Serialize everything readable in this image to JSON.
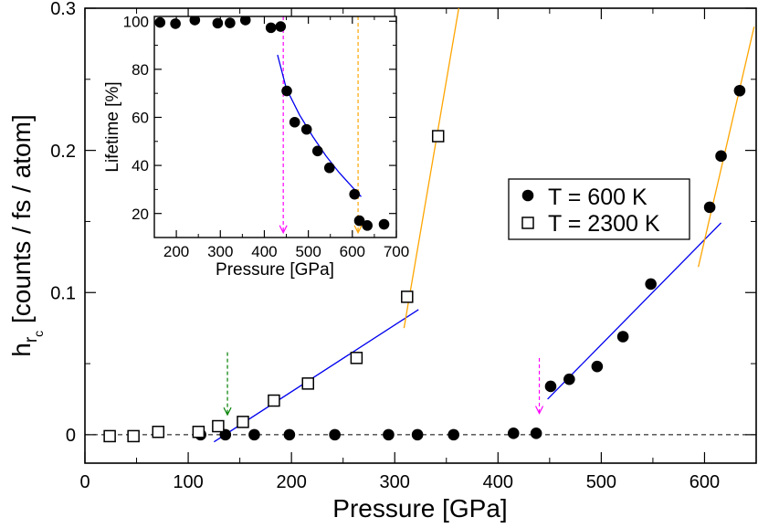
{
  "chart_data": [
    {
      "type": "scatter",
      "title": "",
      "xlabel": "Pressure [GPa]",
      "ylabel_main": "h",
      "ylabel_sub1": "r",
      "ylabel_sub2": "c",
      "ylabel_rest": " [counts / fs / atom]",
      "xlim": [
        0,
        650
      ],
      "ylim": [
        -0.02,
        0.3
      ],
      "xticks": [
        0,
        100,
        200,
        300,
        400,
        500,
        600
      ],
      "xtick_labels": [
        "0",
        "100",
        "200",
        "300",
        "400",
        "500",
        "600"
      ],
      "yticks": [
        0,
        0.1,
        0.2,
        0.3
      ],
      "ytick_labels": [
        "0",
        "0.1",
        "0.2",
        "0.3"
      ],
      "legend_position": "right-center",
      "series": [
        {
          "name": "T = 600 K",
          "marker": "filled-circle",
          "x": [
            112,
            136,
            164,
            198,
            242,
            294,
            322,
            357,
            415,
            437,
            451,
            469,
            496,
            521,
            548,
            605,
            616,
            634
          ],
          "y": [
            0.0,
            0.0,
            0.0,
            0.0,
            0.0,
            0.0,
            0.0,
            0.0,
            0.001,
            0.001,
            0.034,
            0.039,
            0.048,
            0.069,
            0.106,
            0.16,
            0.196,
            0.242
          ]
        },
        {
          "name": "T = 2300 K",
          "marker": "open-square",
          "x": [
            24,
            47,
            71,
            110,
            129,
            153,
            183,
            216,
            263,
            312,
            342
          ],
          "y": [
            -0.001,
            -0.001,
            0.002,
            0.002,
            0.006,
            0.009,
            0.024,
            0.036,
            0.054,
            0.097,
            0.21
          ]
        }
      ],
      "fit_lines": [
        {
          "name": "fit-2300K-low",
          "color": "#0000ee",
          "x": [
            125,
            323
          ],
          "y": [
            -0.005,
            0.088
          ]
        },
        {
          "name": "fit-2300K-high",
          "color": "#ffa500",
          "x": [
            309,
            362
          ],
          "y": [
            0.075,
            0.3
          ]
        },
        {
          "name": "fit-600K-low",
          "color": "#0000ee",
          "x": [
            448,
            616
          ],
          "y": [
            0.025,
            0.149
          ]
        },
        {
          "name": "fit-600K-high",
          "color": "#ffa500",
          "x": [
            594,
            648
          ],
          "y": [
            0.118,
            0.287
          ]
        }
      ],
      "zero_line": {
        "y": 0,
        "style": "dashed"
      },
      "arrows": [
        {
          "name": "green-arrow",
          "color": "#008000",
          "x": 138,
          "y_from": 0.058,
          "y_to": 0.014
        },
        {
          "name": "magenta-arrow",
          "color": "#ff00ff",
          "x": 440,
          "y_from": 0.054,
          "y_to": 0.015
        }
      ]
    },
    {
      "type": "scatter",
      "title": "",
      "xlabel": "Pressure [GPa]",
      "ylabel": "Lifetime [%]",
      "xlim": [
        150,
        700
      ],
      "ylim": [
        10,
        102
      ],
      "xticks": [
        200,
        300,
        400,
        500,
        600,
        700
      ],
      "xtick_labels": [
        "200",
        "300",
        "400",
        "500",
        "600",
        "700"
      ],
      "yticks": [
        20,
        40,
        60,
        80,
        100
      ],
      "ytick_labels": [
        "20",
        "40",
        "60",
        "80",
        "100"
      ],
      "series": [
        {
          "name": "Lifetime",
          "marker": "filled-circle",
          "x": [
            163,
            198,
            242,
            294,
            322,
            357,
            415,
            437,
            451,
            469,
            496,
            521,
            548,
            605,
            616,
            634,
            672
          ],
          "y": [
            99.5,
            99.0,
            100.5,
            99.2,
            99.3,
            100.5,
            97.3,
            97.8,
            71,
            58,
            55,
            46,
            39,
            28,
            17,
            15,
            15.5
          ]
        }
      ],
      "fit_curve": {
        "name": "fit-lifetime",
        "color": "#0000ee",
        "x": [
          430,
          450,
          480,
          510,
          540,
          570,
          600,
          620
        ],
        "y": [
          86,
          72,
          61,
          52,
          44,
          37,
          31,
          27
        ]
      },
      "arrows": [
        {
          "name": "magenta-arrow",
          "color": "#ff00ff",
          "x": 443,
          "y_from": 102,
          "y_to": 12
        },
        {
          "name": "orange-arrow",
          "color": "#ffa500",
          "x": 613,
          "y_from": 102,
          "y_to": 12
        }
      ]
    }
  ],
  "legend": {
    "entries": [
      {
        "label": "T = 600 K",
        "marker": "filled-circle"
      },
      {
        "label": "T = 2300 K",
        "marker": "open-square"
      }
    ]
  },
  "colors": {
    "fit_blue": "#0000ee",
    "fit_orange": "#ffa500",
    "arrow_green": "#008000",
    "arrow_magenta": "#ff00ff",
    "marker": "#000000"
  }
}
